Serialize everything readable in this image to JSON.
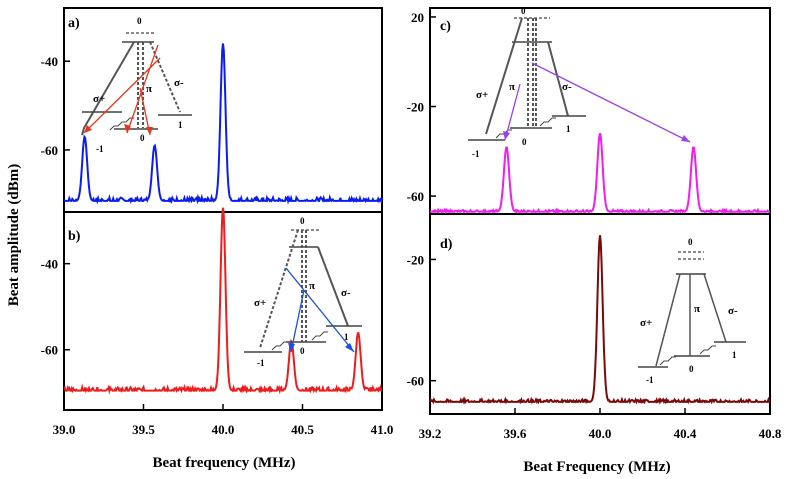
{
  "chart_data": [
    {
      "id": "a",
      "type": "line",
      "panel_label": "a)",
      "color": "#0a1cf5",
      "xlim": [
        39.0,
        41.0
      ],
      "ylim": [
        -74,
        -28
      ],
      "yticks": [
        -40,
        -60
      ],
      "ytick_labels": [
        "-40",
        "-60"
      ],
      "peaks": [
        {
          "x": 39.13,
          "y": -57
        },
        {
          "x": 39.57,
          "y": -59
        },
        {
          "x": 40.0,
          "y": -36
        }
      ],
      "noise_floor": -71.5,
      "inset": {
        "levels": [
          "0",
          "-1",
          "0",
          "1"
        ],
        "sigma_plus": "σ+",
        "sigma_minus": "σ-",
        "pi": "π",
        "arrow_color": "#e8341c"
      }
    },
    {
      "id": "b",
      "type": "line",
      "panel_label": "b)",
      "color": "#ee1c1c",
      "xlim": [
        39.0,
        41.0
      ],
      "ylim": [
        -74,
        -28
      ],
      "yticks": [
        -40,
        -60
      ],
      "ytick_labels": [
        "-40",
        "-60"
      ],
      "xticks": [
        39.0,
        39.5,
        40.0,
        40.5,
        41.0
      ],
      "xtick_labels": [
        "39.0",
        "39.5",
        "40.0",
        "40.5",
        "41.0"
      ],
      "xlabel": "Beat frequency (MHz)",
      "peaks": [
        {
          "x": 40.0,
          "y": -27
        },
        {
          "x": 40.43,
          "y": -58
        },
        {
          "x": 40.85,
          "y": -56
        }
      ],
      "noise_floor": -69.5,
      "inset": {
        "levels": [
          "0",
          "-1",
          "0",
          "1"
        ],
        "sigma_plus": "σ+",
        "sigma_minus": "σ-",
        "pi": "π",
        "arrow_color": "#1c4ee8"
      }
    },
    {
      "id": "c",
      "type": "line",
      "panel_label": "c)",
      "color": "#f01cf0",
      "xlim": [
        39.2,
        40.8
      ],
      "ylim": [
        -68,
        24
      ],
      "yticks": [
        20,
        -20,
        -60
      ],
      "ytick_labels": [
        "20",
        "-20",
        "-60"
      ],
      "peaks": [
        {
          "x": 39.56,
          "y": -38
        },
        {
          "x": 40.0,
          "y": -32
        },
        {
          "x": 40.44,
          "y": -38
        }
      ],
      "noise_floor": -67,
      "inset": {
        "levels": [
          "0",
          "-1",
          "0",
          "1"
        ],
        "sigma_plus": "σ+",
        "sigma_minus": "σ-",
        "pi": "π",
        "arrow_color": "#9a40f0"
      }
    },
    {
      "id": "d",
      "type": "line",
      "panel_label": "d)",
      "color": "#7a0a0a",
      "xlim": [
        39.2,
        40.8
      ],
      "ylim": [
        -71,
        -5
      ],
      "yticks": [
        -20,
        -60
      ],
      "ytick_labels": [
        "-20",
        "-60"
      ],
      "xticks": [
        39.2,
        39.6,
        40.0,
        40.4,
        40.8
      ],
      "xtick_labels": [
        "39.2",
        "39.6",
        "40.0",
        "40.4",
        "40.8"
      ],
      "xlabel": "Beat Frequency (MHz)",
      "peaks": [
        {
          "x": 40.0,
          "y": -12
        }
      ],
      "noise_floor": -67,
      "inset": {
        "levels": [
          "0",
          "-1",
          "0",
          "1"
        ],
        "sigma_plus": "σ+",
        "sigma_minus": "σ-",
        "pi": "π"
      }
    }
  ],
  "ylabel": "Beat amplitude (dBm)"
}
